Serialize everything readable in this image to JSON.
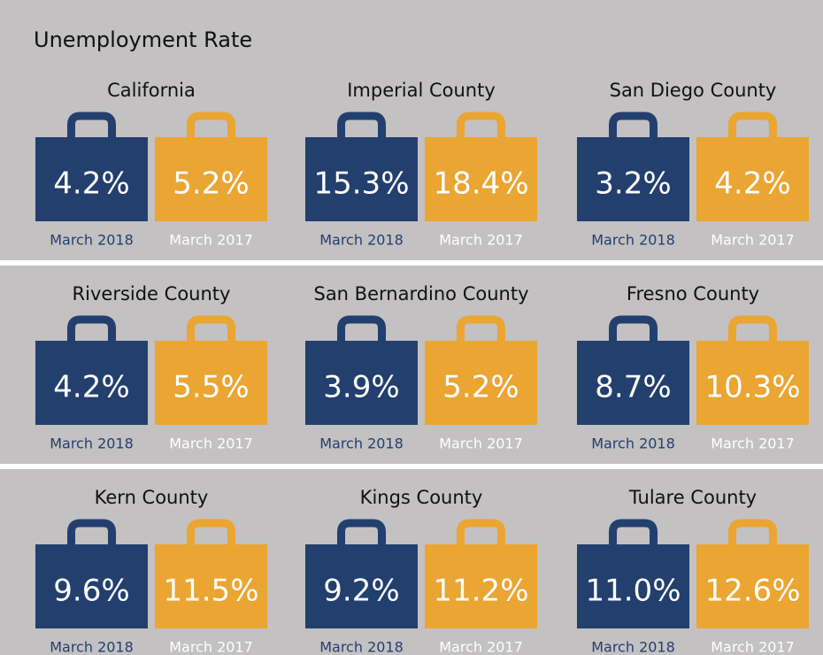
{
  "title": "Unemployment Rate",
  "regions": [
    {
      "name": "California",
      "march_2018": "4.2%",
      "march_2017": "5.2%"
    },
    {
      "name": "Imperial County",
      "march_2018": "15.3%",
      "march_2017": "18.4%"
    },
    {
      "name": "San Diego County",
      "march_2018": "3.2%",
      "march_2017": "4.2%"
    },
    {
      "name": "Riverside County",
      "march_2018": "4.2%",
      "march_2017": "5.5%"
    },
    {
      "name": "San Bernardino County",
      "march_2018": "3.9%",
      "march_2017": "5.2%"
    },
    {
      "name": "Fresno County",
      "march_2018": "8.7%",
      "march_2017": "10.3%"
    },
    {
      "name": "Kern County",
      "march_2018": "9.6%",
      "march_2017": "11.5%"
    },
    {
      "name": "Kings County",
      "march_2018": "9.2%",
      "march_2017": "11.2%"
    },
    {
      "name": "Tulare County",
      "march_2018": "11.0%",
      "march_2017": "12.6%"
    }
  ],
  "periods": [
    "March 2018",
    "March 2017"
  ]
}
